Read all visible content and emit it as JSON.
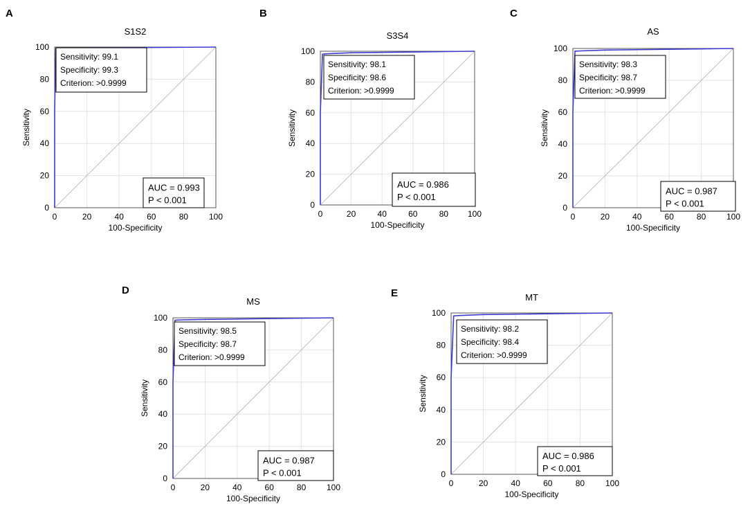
{
  "chart_data": [
    {
      "type": "line",
      "panel": "A",
      "title": "S1S2",
      "xlabel": "100-Specificity",
      "ylabel": "Sensitivity",
      "xlim": [
        0,
        100
      ],
      "ylim": [
        0,
        100
      ],
      "x_ticks": [
        "0",
        "20",
        "40",
        "60",
        "80",
        "100"
      ],
      "y_ticks": [
        "0",
        "20",
        "40",
        "60",
        "80",
        "100"
      ],
      "roc": {
        "x": [
          0,
          0,
          0.7,
          5,
          20,
          100
        ],
        "y": [
          0,
          60,
          99.1,
          99.3,
          99.5,
          100
        ]
      },
      "reference_line": {
        "x": [
          0,
          100
        ],
        "y": [
          0,
          100
        ]
      },
      "stats_lines": [
        "Sensitivity: 99.1",
        "Specificity: 99.3",
        "Criterion: >0.9999"
      ],
      "auc_lines": [
        "AUC = 0.993",
        "P < 0.001"
      ]
    },
    {
      "type": "line",
      "panel": "B",
      "title": "S3S4",
      "xlabel": "100-Specificity",
      "ylabel": "Sensitivity",
      "xlim": [
        0,
        100
      ],
      "ylim": [
        0,
        100
      ],
      "x_ticks": [
        "0",
        "20",
        "40",
        "60",
        "80",
        "100"
      ],
      "y_ticks": [
        "0",
        "20",
        "40",
        "60",
        "80",
        "100"
      ],
      "roc": {
        "x": [
          0,
          0,
          1.4,
          5,
          20,
          100
        ],
        "y": [
          0,
          60,
          98.1,
          98.4,
          99,
          100
        ]
      },
      "reference_line": {
        "x": [
          0,
          100
        ],
        "y": [
          0,
          100
        ]
      },
      "stats_lines": [
        "Sensitivity: 98.1",
        "Specificity: 98.6",
        "Criterion: >0.9999"
      ],
      "auc_lines": [
        "AUC = 0.986",
        "P < 0.001"
      ]
    },
    {
      "type": "line",
      "panel": "C",
      "title": "AS",
      "xlabel": "100-Specificity",
      "ylabel": "Sensitivity",
      "xlim": [
        0,
        100
      ],
      "ylim": [
        0,
        100
      ],
      "x_ticks": [
        "0",
        "20",
        "40",
        "60",
        "80",
        "100"
      ],
      "y_ticks": [
        "0",
        "20",
        "40",
        "60",
        "80",
        "100"
      ],
      "roc": {
        "x": [
          0,
          0,
          1.3,
          5,
          20,
          100
        ],
        "y": [
          0,
          60,
          98.3,
          98.5,
          99,
          100
        ]
      },
      "reference_line": {
        "x": [
          0,
          100
        ],
        "y": [
          0,
          100
        ]
      },
      "stats_lines": [
        "Sensitivity: 98.3",
        "Specificity: 98.7",
        "Criterion: >0.9999"
      ],
      "auc_lines": [
        "AUC = 0.987",
        "P < 0.001"
      ]
    },
    {
      "type": "line",
      "panel": "D",
      "title": "MS",
      "xlabel": "100-Specificity",
      "ylabel": "Sensitivity",
      "xlim": [
        0,
        100
      ],
      "ylim": [
        0,
        100
      ],
      "x_ticks": [
        "0",
        "20",
        "40",
        "60",
        "80",
        "100"
      ],
      "y_ticks": [
        "0",
        "20",
        "40",
        "60",
        "80",
        "100"
      ],
      "roc": {
        "x": [
          0,
          0,
          1.3,
          5,
          20,
          100
        ],
        "y": [
          0,
          60,
          98.5,
          98.7,
          99,
          100
        ]
      },
      "reference_line": {
        "x": [
          0,
          100
        ],
        "y": [
          0,
          100
        ]
      },
      "stats_lines": [
        "Sensitivity: 98.5",
        "Specificity: 98.7",
        "Criterion: >0.9999"
      ],
      "auc_lines": [
        "AUC = 0.987",
        "P < 0.001"
      ]
    },
    {
      "type": "line",
      "panel": "E",
      "title": "MT",
      "xlabel": "100-Specificity",
      "ylabel": "Sensitivity",
      "xlim": [
        0,
        100
      ],
      "ylim": [
        0,
        100
      ],
      "x_ticks": [
        "0",
        "20",
        "40",
        "60",
        "80",
        "100"
      ],
      "y_ticks": [
        "0",
        "20",
        "40",
        "60",
        "80",
        "100"
      ],
      "roc": {
        "x": [
          0,
          0,
          1.6,
          5,
          20,
          100
        ],
        "y": [
          0,
          60,
          98.2,
          98.4,
          99,
          100
        ]
      },
      "reference_line": {
        "x": [
          0,
          100
        ],
        "y": [
          0,
          100
        ]
      },
      "stats_lines": [
        "Sensitivity: 98.2",
        "Specificity: 98.4",
        "Criterion: >0.9999"
      ],
      "auc_lines": [
        "AUC = 0.986",
        "P < 0.001"
      ]
    }
  ]
}
